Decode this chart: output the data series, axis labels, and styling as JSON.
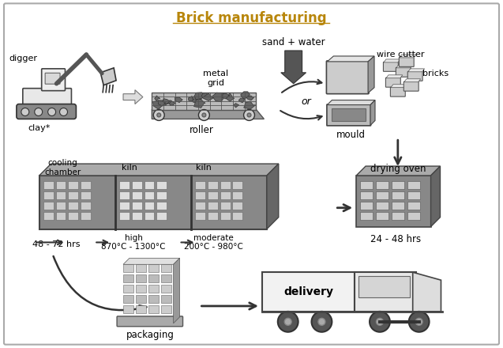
{
  "title": "Brick manufacturing",
  "title_color": "#b8860b",
  "background_color": "#f5f5f5",
  "border_color": "#cccccc",
  "labels": {
    "digger": "digger",
    "clay": "clay*",
    "metal_grid": "metal\ngrid",
    "roller": "roller",
    "sand_water": "sand + water",
    "wire_cutter": "wire cutter",
    "bricks": "bricks",
    "or": "or",
    "mould": "mould",
    "drying_oven": "drying oven",
    "drying_time": "24 - 48 hrs",
    "kiln1": "kiln",
    "kiln2": "kiln",
    "cooling_chamber": "cooling\nchamber",
    "high_temp": "high\n870°C - 1300°C",
    "moderate_temp": "moderate\n200°C - 980°C",
    "cooling_time": "48 - 72 hrs",
    "packaging": "packaging",
    "delivery": "delivery"
  },
  "figsize": [
    6.37,
    4.4
  ],
  "dpi": 100
}
